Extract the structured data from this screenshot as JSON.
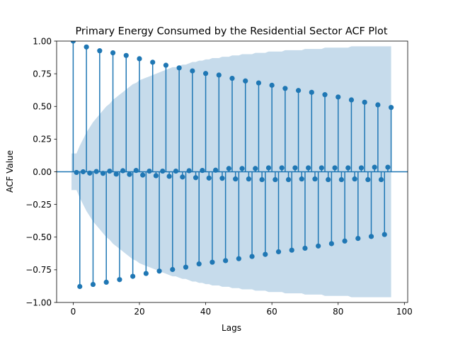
{
  "chart_data": {
    "type": "scatter",
    "subtype": "acf-stem",
    "title": "Primary Energy Consumed by the Residential Sector ACF Plot",
    "xlabel": "Lags",
    "ylabel": "ACF Value",
    "xlim": [
      -5,
      101
    ],
    "ylim": [
      -1.0,
      1.0
    ],
    "xticks": [
      "0",
      "20",
      "40",
      "60",
      "80",
      "100"
    ],
    "yticks": [
      "−1.00",
      "−0.75",
      "−0.50",
      "−0.25",
      "0.00",
      "0.25",
      "0.50",
      "0.75",
      "1.00"
    ],
    "grid": false,
    "colors": {
      "stem": "#1f77b4",
      "band": "#c6dbeb"
    },
    "x": [
      0,
      1,
      2,
      3,
      4,
      5,
      6,
      7,
      8,
      9,
      10,
      11,
      12,
      13,
      14,
      15,
      16,
      17,
      18,
      19,
      20,
      21,
      22,
      23,
      24,
      25,
      26,
      27,
      28,
      29,
      30,
      31,
      32,
      33,
      34,
      35,
      36,
      37,
      38,
      39,
      40,
      41,
      42,
      43,
      44,
      45,
      46,
      47,
      48,
      49,
      50,
      51,
      52,
      53,
      54,
      55,
      56,
      57,
      58,
      59,
      60,
      61,
      62,
      63,
      64,
      65,
      66,
      67,
      68,
      69,
      70,
      71,
      72,
      73,
      74,
      75,
      76,
      77,
      78,
      79,
      80,
      81,
      82,
      83,
      84,
      85,
      86,
      87,
      88,
      89,
      90,
      91,
      92,
      93,
      94,
      95,
      96
    ],
    "acf": [
      1.0,
      -0.005,
      -0.878,
      0.0,
      0.955,
      -0.01,
      -0.862,
      0.002,
      0.926,
      -0.012,
      -0.845,
      0.005,
      0.91,
      -0.018,
      -0.825,
      0.008,
      0.89,
      -0.02,
      -0.8,
      0.01,
      0.865,
      -0.025,
      -0.778,
      0.005,
      0.838,
      -0.03,
      -0.76,
      0.005,
      0.815,
      -0.035,
      -0.748,
      0.005,
      0.795,
      -0.04,
      -0.73,
      0.008,
      0.772,
      -0.045,
      -0.705,
      0.01,
      0.752,
      -0.048,
      -0.692,
      0.012,
      0.74,
      -0.05,
      -0.68,
      0.025,
      0.715,
      -0.055,
      -0.665,
      0.025,
      0.695,
      -0.055,
      -0.648,
      0.025,
      0.68,
      -0.06,
      -0.632,
      0.03,
      0.662,
      -0.06,
      -0.612,
      0.03,
      0.638,
      -0.06,
      -0.6,
      0.03,
      0.622,
      -0.055,
      -0.585,
      0.03,
      0.608,
      -0.055,
      -0.568,
      0.03,
      0.59,
      -0.06,
      -0.55,
      0.03,
      0.572,
      -0.06,
      -0.53,
      0.03,
      0.55,
      -0.055,
      -0.51,
      0.03,
      0.532,
      -0.06,
      -0.495,
      0.035,
      0.512,
      -0.06,
      -0.48,
      0.035,
      0.492
    ],
    "confidence_band_upper": [
      0.14,
      0.14,
      0.2,
      0.25,
      0.3,
      0.34,
      0.38,
      0.41,
      0.44,
      0.47,
      0.5,
      0.52,
      0.55,
      0.57,
      0.59,
      0.61,
      0.63,
      0.65,
      0.67,
      0.68,
      0.7,
      0.71,
      0.72,
      0.73,
      0.74,
      0.75,
      0.76,
      0.77,
      0.78,
      0.79,
      0.8,
      0.8,
      0.81,
      0.82,
      0.82,
      0.83,
      0.84,
      0.84,
      0.85,
      0.85,
      0.86,
      0.86,
      0.87,
      0.87,
      0.87,
      0.88,
      0.88,
      0.88,
      0.89,
      0.89,
      0.89,
      0.9,
      0.9,
      0.9,
      0.9,
      0.91,
      0.91,
      0.91,
      0.91,
      0.92,
      0.92,
      0.92,
      0.92,
      0.92,
      0.93,
      0.93,
      0.93,
      0.93,
      0.93,
      0.93,
      0.94,
      0.94,
      0.94,
      0.94,
      0.94,
      0.94,
      0.95,
      0.95,
      0.95,
      0.95,
      0.95,
      0.95,
      0.95,
      0.95,
      0.96,
      0.96,
      0.96,
      0.96,
      0.96,
      0.96,
      0.96,
      0.96,
      0.96,
      0.96,
      0.96,
      0.96,
      0.96
    ]
  }
}
